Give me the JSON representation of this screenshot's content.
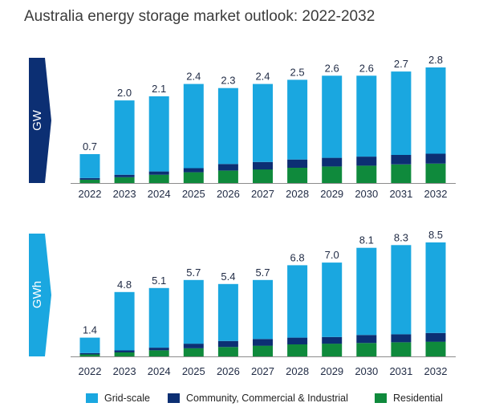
{
  "title": "Australia energy storage market outlook: 2022-2032",
  "colors": {
    "grid_scale": "#1aa7e0",
    "cci": "#0c2f73",
    "residential": "#0f8a3c",
    "gw_tab": "#0c2f73",
    "gwh_tab": "#1aa7e0"
  },
  "legend": [
    {
      "key": "grid_scale",
      "label": "Grid-scale"
    },
    {
      "key": "cci",
      "label": "Community, Commercial & Industrial"
    },
    {
      "key": "residential",
      "label": "Residential"
    }
  ],
  "chart_data": [
    {
      "type": "bar",
      "stacked": true,
      "unit": "GW",
      "categories": [
        "2022",
        "2023",
        "2024",
        "2025",
        "2026",
        "2027",
        "2028",
        "2029",
        "2030",
        "2031",
        "2032"
      ],
      "totals": [
        0.7,
        2.0,
        2.1,
        2.4,
        2.3,
        2.4,
        2.5,
        2.6,
        2.6,
        2.7,
        2.8
      ],
      "total_labels": [
        "0.7",
        "2.0",
        "2.1",
        "2.4",
        "2.3",
        "2.4",
        "2.5",
        "2.6",
        "2.6",
        "2.7",
        "2.8"
      ],
      "series": [
        {
          "name": "Residential",
          "key": "residential",
          "values": [
            0.08,
            0.14,
            0.2,
            0.26,
            0.3,
            0.33,
            0.37,
            0.4,
            0.42,
            0.45,
            0.47
          ]
        },
        {
          "name": "Community, Commercial & Industrial",
          "key": "cci",
          "values": [
            0.04,
            0.06,
            0.08,
            0.1,
            0.16,
            0.18,
            0.2,
            0.21,
            0.22,
            0.23,
            0.24
          ]
        },
        {
          "name": "Grid-scale",
          "key": "grid_scale",
          "values": [
            0.58,
            1.8,
            1.82,
            2.04,
            1.84,
            1.89,
            1.93,
            1.99,
            1.96,
            2.02,
            2.09
          ]
        }
      ],
      "ylim": [
        0,
        3.0
      ]
    },
    {
      "type": "bar",
      "stacked": true,
      "unit": "GWh",
      "categories": [
        "2022",
        "2023",
        "2024",
        "2025",
        "2026",
        "2027",
        "2028",
        "2029",
        "2030",
        "2031",
        "2032"
      ],
      "totals": [
        1.4,
        4.8,
        5.1,
        5.7,
        5.4,
        5.7,
        6.8,
        7.0,
        8.1,
        8.3,
        8.5
      ],
      "total_labels": [
        "1.4",
        "4.8",
        "5.1",
        "5.7",
        "5.4",
        "5.7",
        "6.8",
        "7.0",
        "8.1",
        "8.3",
        "8.5"
      ],
      "series": [
        {
          "name": "Residential",
          "key": "residential",
          "values": [
            0.15,
            0.3,
            0.45,
            0.6,
            0.7,
            0.8,
            0.9,
            0.95,
            1.0,
            1.05,
            1.1
          ]
        },
        {
          "name": "Community, Commercial & Industrial",
          "key": "cci",
          "values": [
            0.1,
            0.15,
            0.2,
            0.35,
            0.45,
            0.5,
            0.5,
            0.5,
            0.6,
            0.6,
            0.65
          ]
        },
        {
          "name": "Grid-scale",
          "key": "grid_scale",
          "values": [
            1.15,
            4.35,
            4.45,
            4.75,
            4.25,
            4.4,
            5.4,
            5.55,
            6.5,
            6.65,
            6.75
          ]
        }
      ],
      "ylim": [
        0,
        9.0
      ]
    }
  ]
}
